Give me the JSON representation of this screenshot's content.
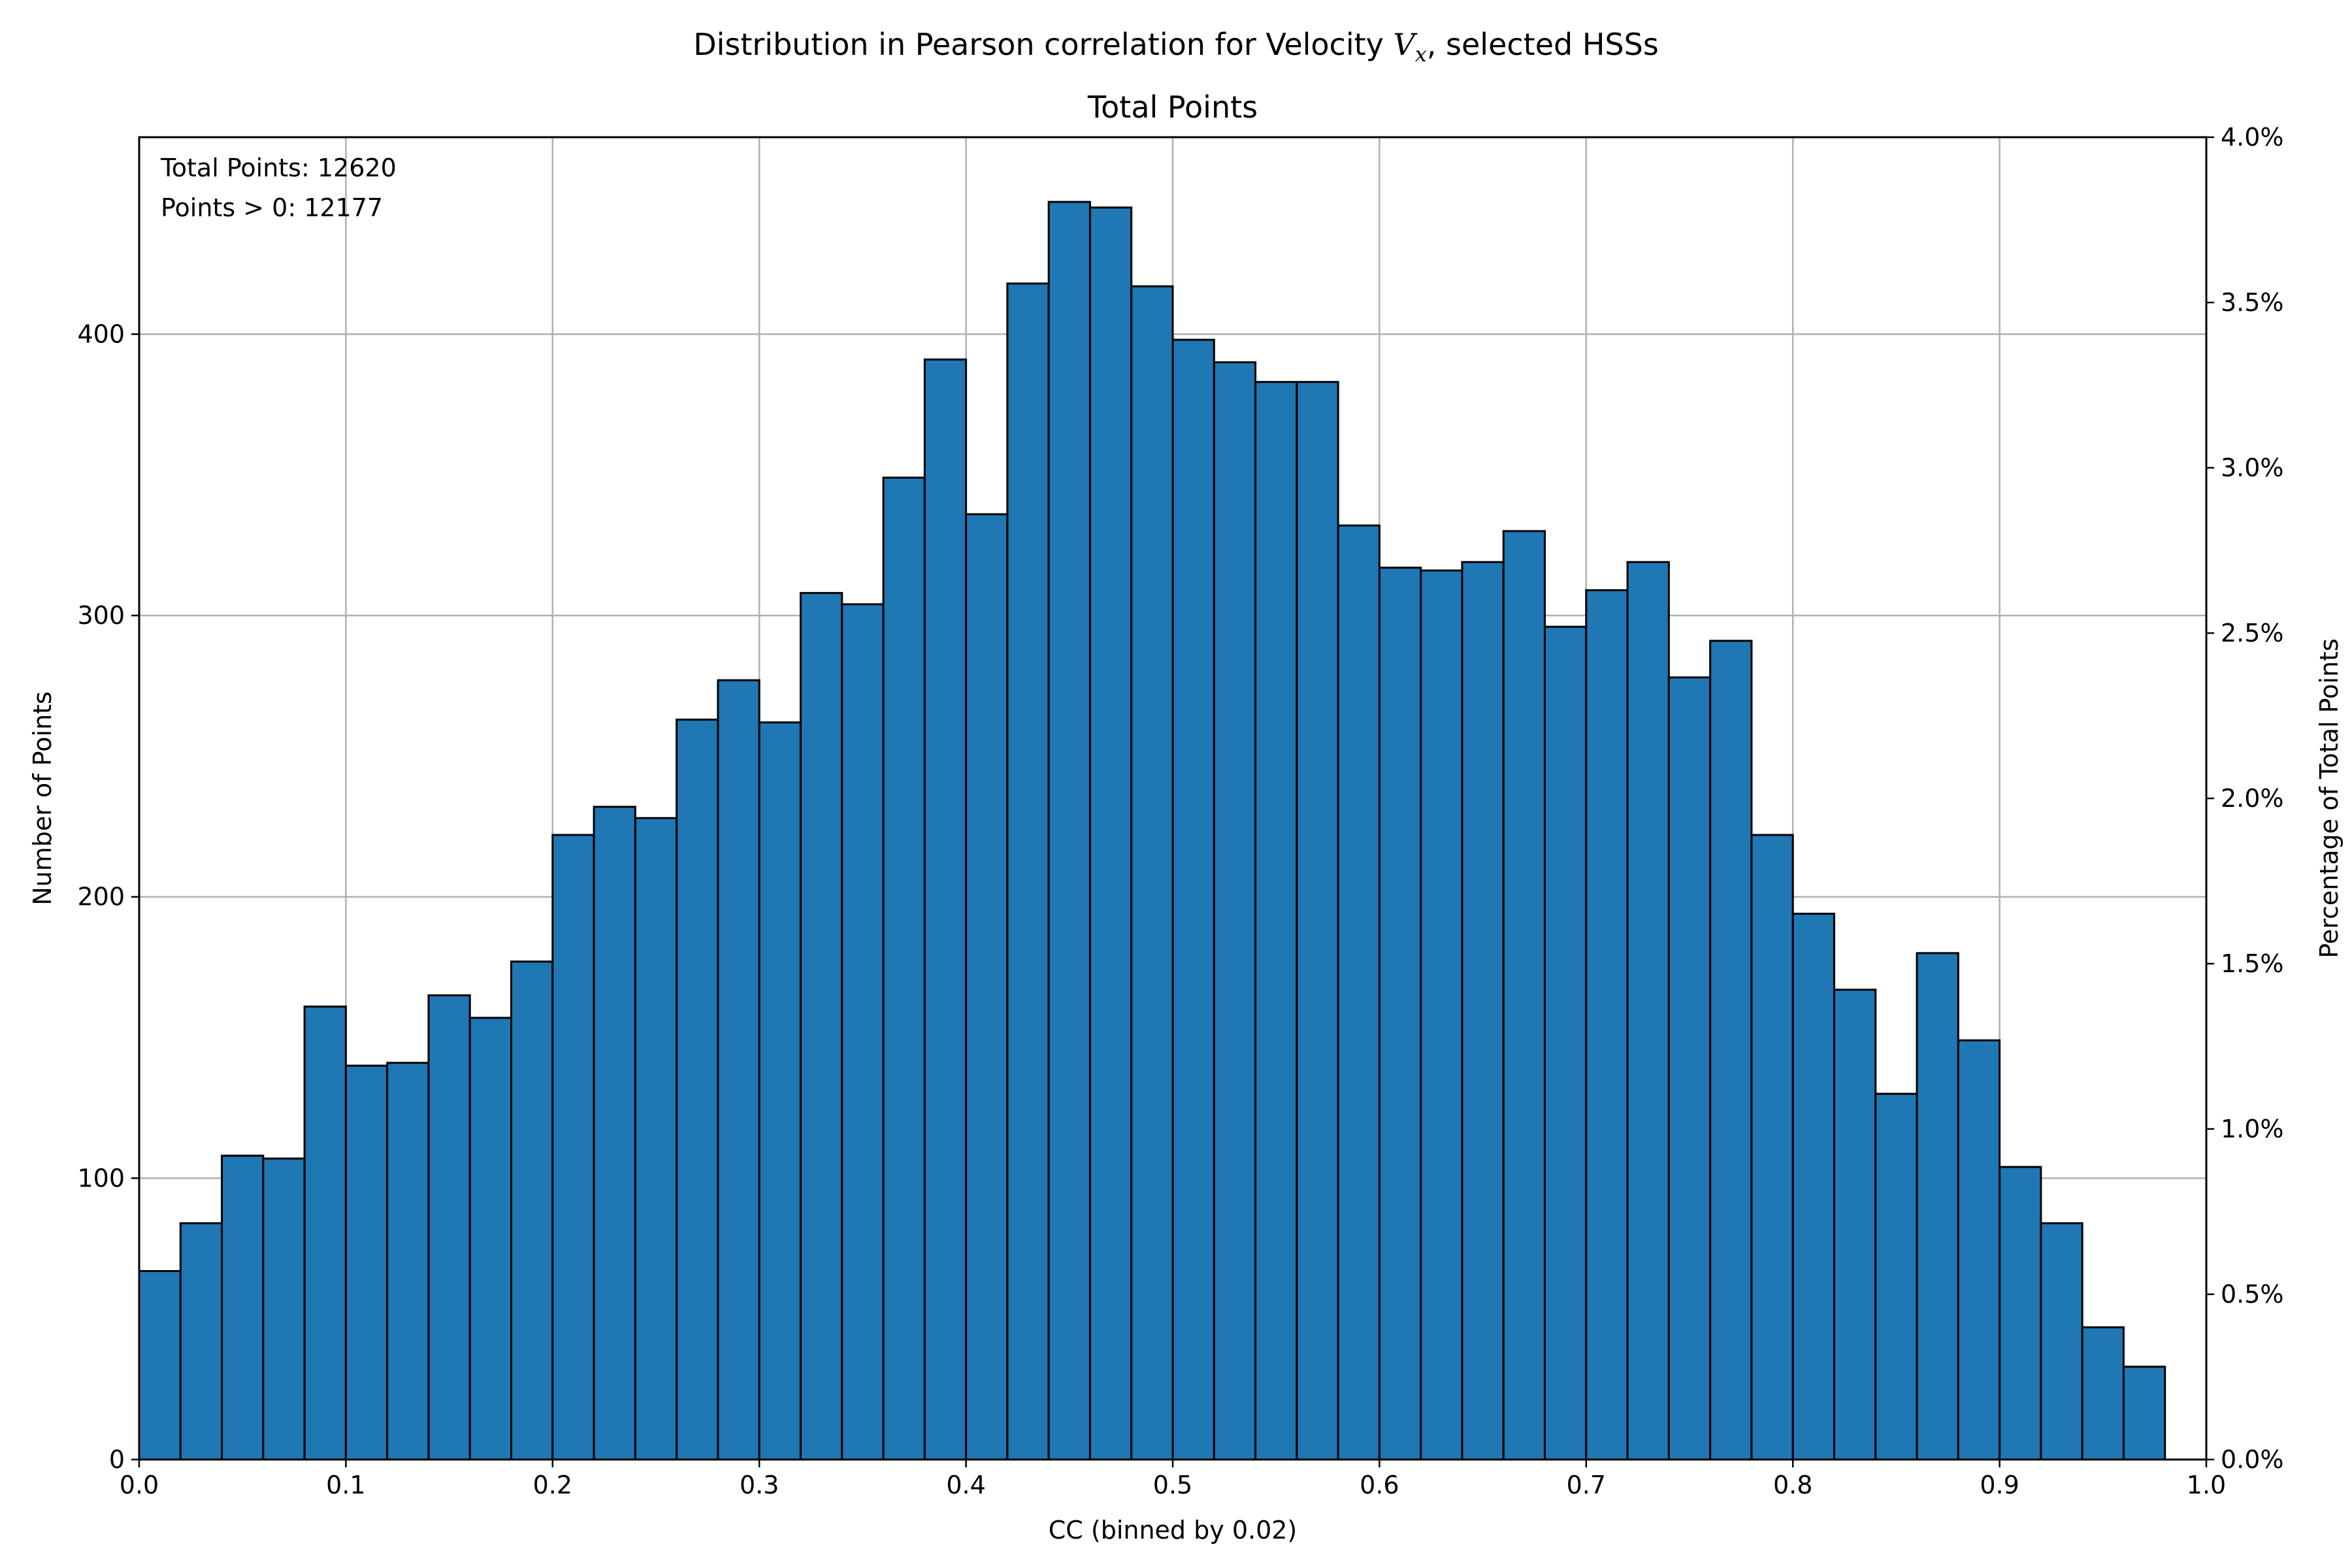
{
  "figure": {
    "suptitle_prefix": "Distribution in Pearson correlation for Velocity ",
    "suptitle_var": "V",
    "suptitle_sub": "x",
    "suptitle_suffix": ", selected HSSs"
  },
  "chart_data": {
    "type": "bar",
    "title": "Total Points",
    "xlabel": "CC (binned by 0.02)",
    "ylabel": "Number of Points",
    "y2label": "Percentage of Total Points",
    "bin_width": 0.02,
    "x": [
      0.0,
      0.02,
      0.04,
      0.06,
      0.08,
      0.1,
      0.12,
      0.14,
      0.16,
      0.18,
      0.2,
      0.22,
      0.24,
      0.26,
      0.28,
      0.3,
      0.32,
      0.34,
      0.36,
      0.38,
      0.4,
      0.42,
      0.44,
      0.46,
      0.48,
      0.5,
      0.52,
      0.54,
      0.56,
      0.58,
      0.6,
      0.62,
      0.64,
      0.66,
      0.68,
      0.7,
      0.72,
      0.74,
      0.76,
      0.78,
      0.8,
      0.82,
      0.84,
      0.86,
      0.88,
      0.9,
      0.92,
      0.94,
      0.96
    ],
    "values": [
      67,
      84,
      108,
      107,
      161,
      140,
      141,
      165,
      157,
      177,
      222,
      232,
      228,
      263,
      277,
      262,
      308,
      304,
      349,
      391,
      336,
      418,
      447,
      445,
      417,
      398,
      390,
      383,
      383,
      332,
      317,
      316,
      319,
      330,
      296,
      309,
      319,
      278,
      291,
      222,
      194,
      167,
      130,
      180,
      149,
      104,
      84,
      47,
      33
    ],
    "xlim": [
      0.0,
      1.0
    ],
    "ylim": [
      0,
      470
    ],
    "y2lim": [
      0.0,
      4.0
    ],
    "xticks": [
      "0.0",
      "0.1",
      "0.2",
      "0.3",
      "0.4",
      "0.5",
      "0.6",
      "0.7",
      "0.8",
      "0.9",
      "1.0"
    ],
    "yticks": [
      "0",
      "100",
      "200",
      "300",
      "400"
    ],
    "y2ticks": [
      "0.0%",
      "0.5%",
      "1.0%",
      "1.5%",
      "2.0%",
      "2.5%",
      "3.0%",
      "3.5%",
      "4.0%"
    ],
    "annotations": [
      "Total Points: 12620",
      "Points > 0: 12177"
    ],
    "grid": true,
    "colors": {
      "bar": "#1f77b4",
      "edge": "#000000",
      "grid": "#b0b0b0"
    }
  }
}
